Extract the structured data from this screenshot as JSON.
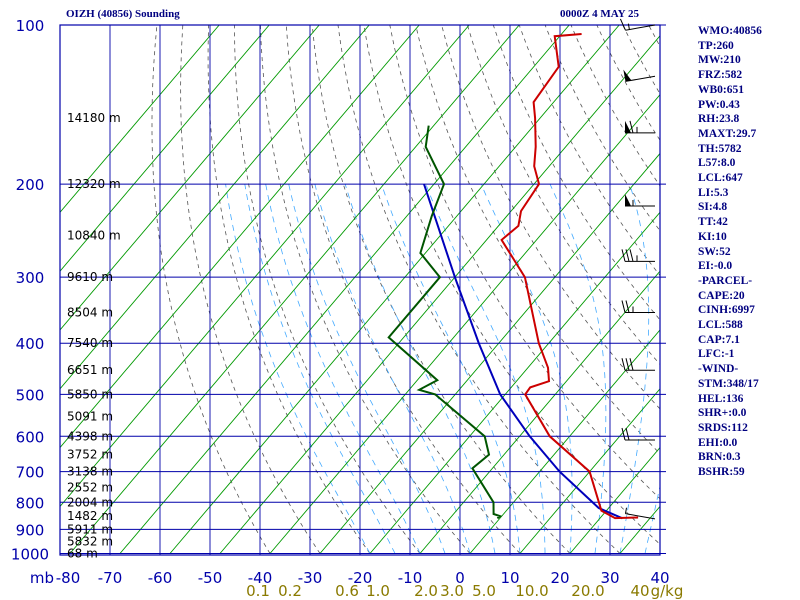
{
  "header": {
    "station": "OIZH (40856) Sounding",
    "time": "0000Z  4 MAY 25"
  },
  "chart_data": {
    "type": "line",
    "chart_kind": "skew-T log-P sounding",
    "y_axis": {
      "scale": "log",
      "unit": "mb",
      "range": [
        1000,
        100
      ],
      "ticks": [
        100,
        200,
        300,
        400,
        500,
        600,
        700,
        800,
        900,
        1000
      ]
    },
    "x_axis": {
      "unit_label": "mb",
      "range": [
        -80,
        40
      ],
      "ticks": [
        "-80",
        "-70",
        "-60",
        "-50",
        "-40",
        "-30",
        "-20",
        "-10",
        "0",
        "10",
        "20",
        "30",
        "40"
      ]
    },
    "mixing_ratio_labels": [
      "0.1",
      "0.2",
      "0.6",
      "1.0",
      "2.0",
      "3.0",
      "5.0",
      "10.0",
      "20.0",
      "40",
      "g/kg"
    ],
    "heights": [
      {
        "p": 150,
        "label": "14180 m"
      },
      {
        "p": 200,
        "label": "12320 m"
      },
      {
        "p": 250,
        "label": "10840 m"
      },
      {
        "p": 300,
        "label": "9610 m"
      },
      {
        "p": 350,
        "label": "8504 m"
      },
      {
        "p": 400,
        "label": "7540 m"
      },
      {
        "p": 450,
        "label": "6651 m"
      },
      {
        "p": 500,
        "label": "5850 m"
      },
      {
        "p": 550,
        "label": "5091 m"
      },
      {
        "p": 600,
        "label": "4398 m"
      },
      {
        "p": 650,
        "label": "3752 m"
      },
      {
        "p": 700,
        "label": "3138 m"
      },
      {
        "p": 750,
        "label": "2552 m"
      },
      {
        "p": 800,
        "label": "2004 m"
      },
      {
        "p": 850,
        "label": "1482 m"
      },
      {
        "p": 900,
        "label": "5911 m"
      },
      {
        "p": 950,
        "label": "5832 m"
      },
      {
        "p": 1000,
        "label": "68 m"
      }
    ],
    "series": [],
    "temperature": [
      {
        "p": 855,
        "t": 27.5
      },
      {
        "p": 857,
        "t": 23
      },
      {
        "p": 830,
        "t": 19
      },
      {
        "p": 700,
        "t": 10
      },
      {
        "p": 600,
        "t": -4
      },
      {
        "p": 500,
        "t": -16
      },
      {
        "p": 485,
        "t": -16.2
      },
      {
        "p": 472,
        "t": -13.5
      },
      {
        "p": 445,
        "t": -16
      },
      {
        "p": 400,
        "t": -22
      },
      {
        "p": 300,
        "t": -36
      },
      {
        "p": 255,
        "t": -47
      },
      {
        "p": 240,
        "t": -46
      },
      {
        "p": 225,
        "t": -48
      },
      {
        "p": 200,
        "t": -49
      },
      {
        "p": 185,
        "t": -53
      },
      {
        "p": 170,
        "t": -56
      },
      {
        "p": 150,
        "t": -61
      },
      {
        "p": 140,
        "t": -64
      },
      {
        "p": 120,
        "t": -65
      },
      {
        "p": 105,
        "t": -71
      },
      {
        "p": 104,
        "t": -66
      }
    ],
    "dewpoint": [
      {
        "p": 858,
        "t": -0.5
      },
      {
        "p": 850,
        "t": -0.3
      },
      {
        "p": 842,
        "t": -2
      },
      {
        "p": 800,
        "t": -4
      },
      {
        "p": 690,
        "t": -14
      },
      {
        "p": 650,
        "t": -13
      },
      {
        "p": 600,
        "t": -17
      },
      {
        "p": 500,
        "t": -34
      },
      {
        "p": 490,
        "t": -38
      },
      {
        "p": 470,
        "t": -36
      },
      {
        "p": 390,
        "t": -53
      },
      {
        "p": 300,
        "t": -53
      },
      {
        "p": 270,
        "t": -61
      },
      {
        "p": 230,
        "t": -65
      },
      {
        "p": 200,
        "t": -68
      },
      {
        "p": 170,
        "t": -78
      },
      {
        "p": 155,
        "t": -81
      }
    ],
    "parcel": [
      {
        "p": 858,
        "t": 24.5
      },
      {
        "p": 820,
        "t": 18
      },
      {
        "p": 700,
        "t": 4
      },
      {
        "p": 600,
        "t": -8
      },
      {
        "p": 500,
        "t": -21
      },
      {
        "p": 400,
        "t": -34
      },
      {
        "p": 300,
        "t": -50
      },
      {
        "p": 200,
        "t": -72
      }
    ],
    "wind_barbs": [
      {
        "p": 860,
        "dir": 280,
        "spd": 5
      },
      {
        "p": 610,
        "dir": 270,
        "spd": 20
      },
      {
        "p": 450,
        "dir": 270,
        "spd": 30
      },
      {
        "p": 350,
        "dir": 270,
        "spd": 25
      },
      {
        "p": 280,
        "dir": 270,
        "spd": 35
      },
      {
        "p": 220,
        "dir": 270,
        "spd": 55
      },
      {
        "p": 160,
        "dir": 270,
        "spd": 65
      },
      {
        "p": 125,
        "dir": 260,
        "spd": 50
      },
      {
        "p": 100,
        "dir": 260,
        "spd": 15
      }
    ],
    "indices": [
      "WMO:40856",
      "TP:260",
      "MW:210",
      "FRZ:582",
      "WB0:651",
      "PW:0.43",
      "RH:23.8",
      "MAXT:29.7",
      "TH:5782",
      "L57:8.0",
      "LCL:647",
      "LI:5.3",
      "SI:4.8",
      "TT:42",
      "KI:10",
      "SW:52",
      "EI:-0.0",
      "-PARCEL-",
      "CAPE:20",
      "CINH:6997",
      "LCL:588",
      "CAP:7.1",
      "LFC:-1",
      "-WIND-",
      "STM:348/17",
      "HEL:136",
      "SHR+:0.0",
      "SRDS:112",
      "EHI:0.0",
      "BRN:0.3",
      "BSHR:59"
    ],
    "colors": {
      "temperature": "#cc0000",
      "dewpoint": "#005500",
      "parcel": "#0000bb",
      "grid": "#0000aa",
      "isotherm": "#009900",
      "adiabat": "#555555",
      "moist": "#44aaff",
      "text": "#000080"
    }
  }
}
